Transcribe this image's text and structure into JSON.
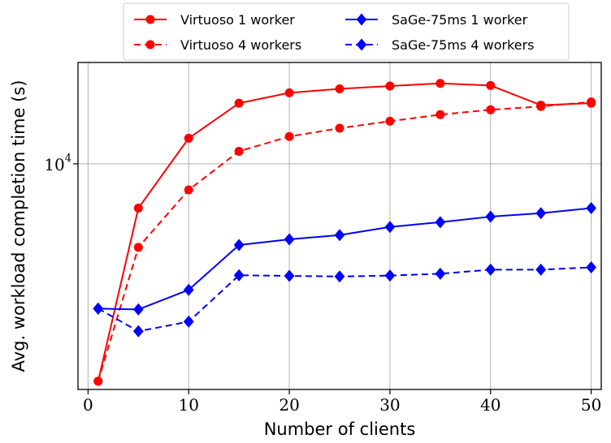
{
  "chart_data": {
    "type": "line",
    "xlabel": "Number of clients",
    "ylabel": "Avg. workload completion time (s)",
    "yscale": "log",
    "xlim": [
      -1,
      51
    ],
    "ylim": [
      1300,
      25000
    ],
    "x_ticks": [
      0,
      10,
      20,
      30,
      40,
      50
    ],
    "x_tick_labels": [
      "0",
      "10",
      "20",
      "30",
      "40",
      "50"
    ],
    "y_tick_value": 10000,
    "y_tick_base": "10",
    "y_tick_exp": "4",
    "grid": true,
    "legend_position": "top",
    "series": [
      {
        "name": "Virtuoso 1 worker",
        "color": "#ff0000",
        "marker": "circle",
        "dashed": false,
        "x": [
          1,
          5,
          10,
          15,
          20,
          25,
          30,
          35,
          40,
          45,
          50
        ],
        "y": [
          1400,
          6700,
          12600,
          17300,
          19000,
          19700,
          20200,
          20700,
          20300,
          17000,
          17300
        ]
      },
      {
        "name": "Virtuoso 4 workers",
        "color": "#ff0000",
        "marker": "circle",
        "dashed": true,
        "x": [
          1,
          5,
          10,
          15,
          20,
          25,
          30,
          35,
          40,
          45,
          50
        ],
        "y": [
          1400,
          4700,
          7900,
          11200,
          12800,
          13800,
          14700,
          15600,
          16300,
          16800,
          17500
        ]
      },
      {
        "name": "SaGe-75ms 1 worker",
        "color": "#0000ff",
        "marker": "diamond",
        "dashed": false,
        "x": [
          1,
          5,
          10,
          15,
          20,
          25,
          30,
          35,
          40,
          45,
          50
        ],
        "y": [
          2700,
          2680,
          3200,
          4800,
          5050,
          5250,
          5650,
          5900,
          6200,
          6400,
          6700
        ]
      },
      {
        "name": "SaGe-75ms 4 workers",
        "color": "#0000ff",
        "marker": "diamond",
        "dashed": true,
        "x": [
          1,
          5,
          10,
          15,
          20,
          25,
          30,
          35,
          40,
          45,
          50
        ],
        "y": [
          2700,
          2200,
          2400,
          3650,
          3630,
          3610,
          3640,
          3700,
          3840,
          3840,
          3920
        ]
      }
    ]
  }
}
